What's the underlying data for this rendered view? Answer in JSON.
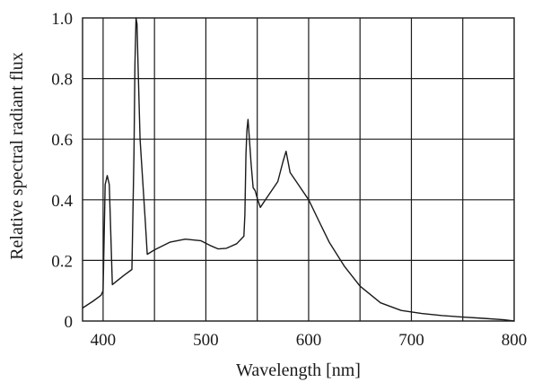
{
  "chart_data": {
    "type": "line",
    "xlabel": "Wavelength [nm]",
    "ylabel": "Relative spectral radiant flux",
    "xlim": [
      380,
      800
    ],
    "ylim": [
      0,
      1.0
    ],
    "x_ticks": [
      400,
      500,
      600,
      700,
      800
    ],
    "y_ticks": [
      0,
      0.2,
      0.4,
      0.6,
      0.8,
      1.0
    ],
    "x_tick_labels": [
      "400",
      "500",
      "600",
      "700",
      "800"
    ],
    "y_tick_labels": [
      "0",
      "0.2",
      "0.4",
      "0.6",
      "0.8",
      "1.0"
    ],
    "grid": true,
    "grid_x": [
      400,
      450,
      500,
      550,
      600,
      650,
      700,
      750
    ],
    "grid_y": [
      0.2,
      0.4,
      0.6,
      0.8
    ],
    "series": [
      {
        "x": [
          380,
          390,
          398,
          400,
          402,
          404,
          406,
          409,
          420,
          428,
          430,
          431,
          432,
          433,
          434,
          436,
          441,
          443,
          450,
          465,
          480,
          495,
          505,
          512,
          520,
          530,
          537,
          538,
          539,
          540,
          541,
          542,
          544,
          546,
          548,
          550,
          553,
          560,
          570,
          575,
          578,
          582,
          590,
          600,
          610,
          620,
          635,
          650,
          670,
          690,
          710,
          730,
          750,
          770,
          790,
          800
        ],
        "y": [
          0.043,
          0.065,
          0.085,
          0.1,
          0.45,
          0.48,
          0.45,
          0.12,
          0.15,
          0.17,
          0.55,
          0.85,
          1.0,
          0.98,
          0.85,
          0.6,
          0.33,
          0.22,
          0.235,
          0.26,
          0.27,
          0.265,
          0.248,
          0.238,
          0.24,
          0.255,
          0.28,
          0.35,
          0.55,
          0.63,
          0.665,
          0.62,
          0.52,
          0.44,
          0.43,
          0.405,
          0.375,
          0.41,
          0.46,
          0.525,
          0.56,
          0.49,
          0.45,
          0.4,
          0.33,
          0.26,
          0.18,
          0.115,
          0.06,
          0.035,
          0.025,
          0.018,
          0.013,
          0.009,
          0.004,
          0.0
        ]
      }
    ]
  }
}
